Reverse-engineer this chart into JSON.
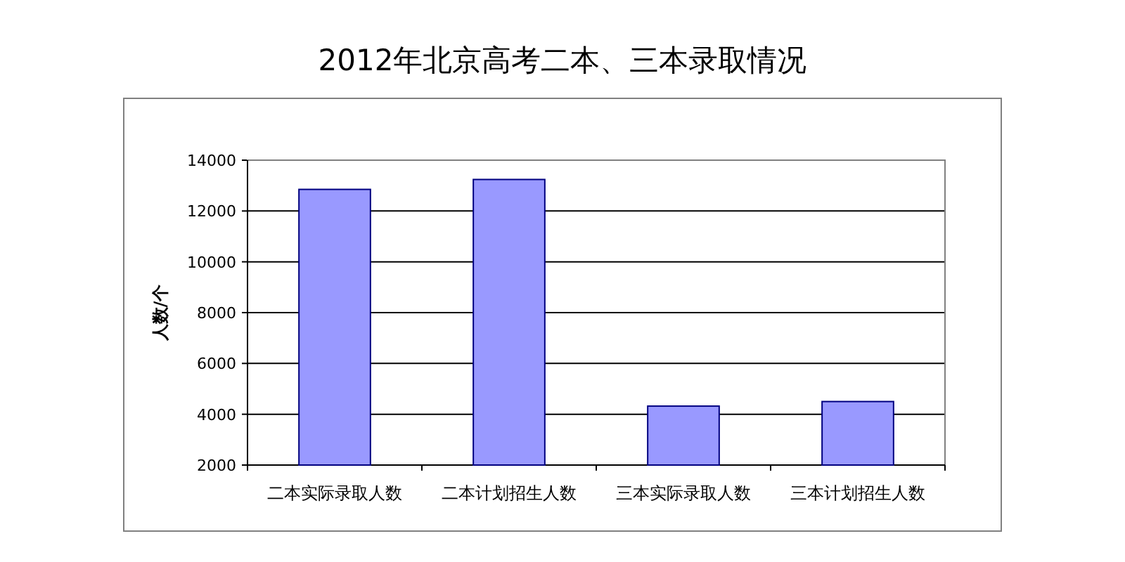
{
  "chart_data": {
    "type": "bar",
    "title": "2012年北京高考二本、三本录取情况",
    "ylabel": "人数/个",
    "categories": [
      "二本实际录取人数",
      "二本计划招生人数",
      "三本实际录取人数",
      "三本计划招生人数"
    ],
    "values": [
      12850,
      13240,
      4320,
      4500
    ],
    "color": "#9999ff",
    "ylim": [
      2000,
      14000
    ],
    "yticks": [
      2000,
      4000,
      6000,
      8000,
      10000,
      12000,
      14000
    ],
    "grid": "y"
  }
}
